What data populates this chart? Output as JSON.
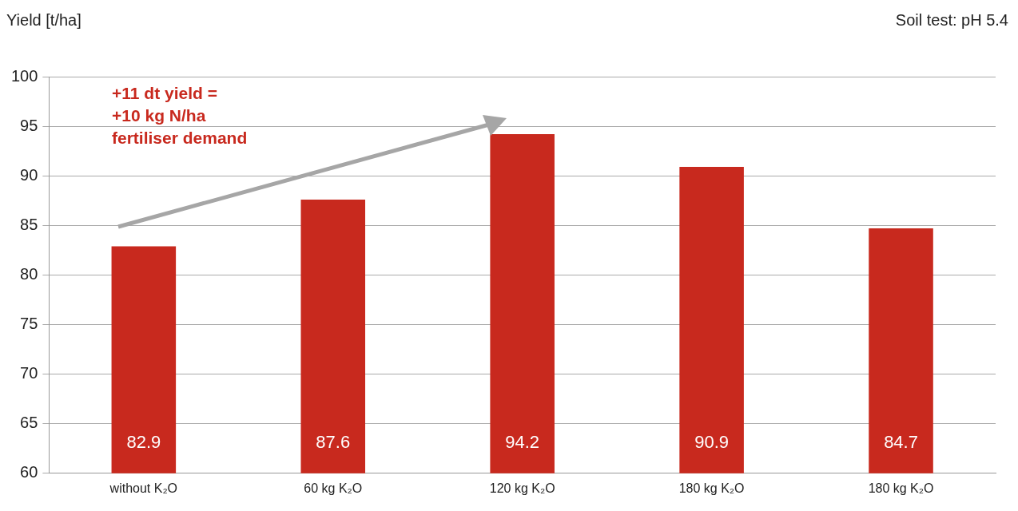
{
  "chart_data": {
    "type": "bar",
    "ylabel": "Yield [t/ha]",
    "categories": [
      "without K₂O",
      "60 kg K₂O",
      "120 kg K₂O",
      "180 kg K₂O",
      "180 kg K₂O"
    ],
    "values": [
      82.9,
      87.6,
      94.2,
      90.9,
      84.7
    ],
    "color": "#c8291e",
    "ylim": [
      60,
      100
    ],
    "yticks": [
      60,
      65,
      70,
      75,
      80,
      85,
      90,
      95,
      100
    ],
    "grid": "y",
    "data_labels": true,
    "annotations": [
      "Soil test: pH 5.4",
      "+11 dt yield =\n+10 kg N/ha\nfertiliser demand"
    ]
  }
}
